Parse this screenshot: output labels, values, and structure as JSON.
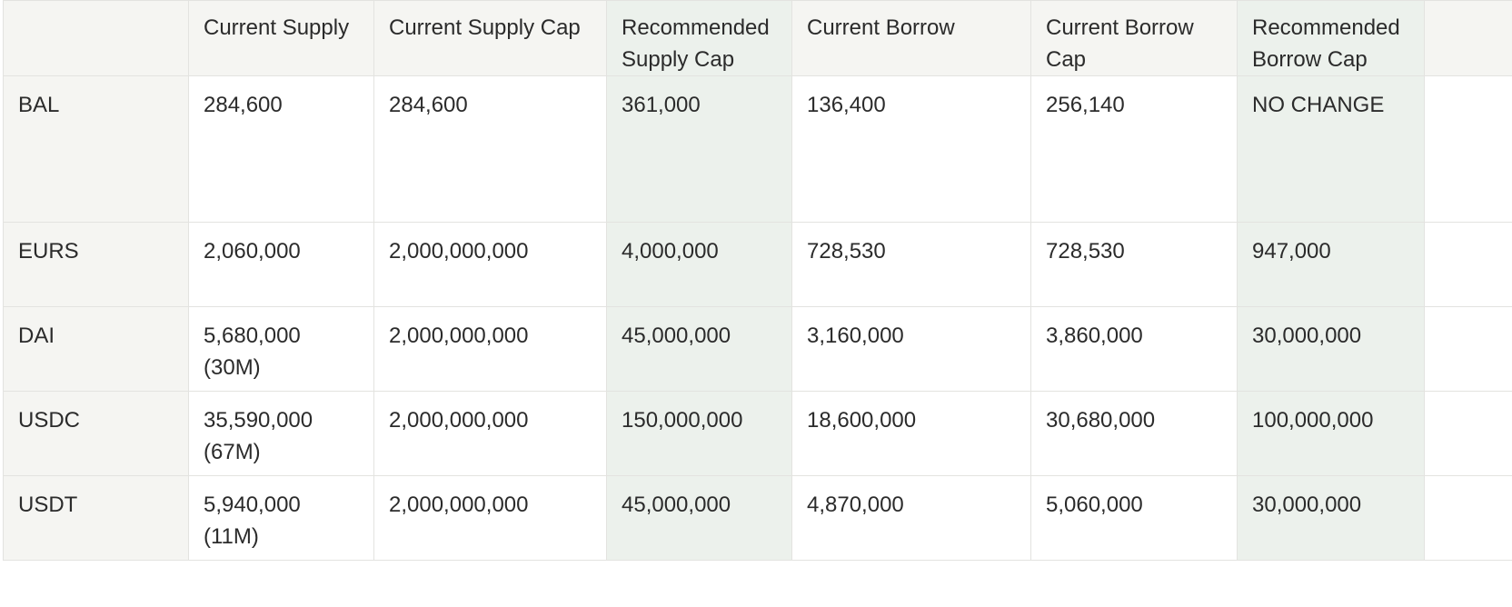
{
  "table": {
    "headers": {
      "corner": "",
      "current_supply": "Current Supply",
      "current_supply_cap": "Current Supply Cap",
      "recommended_supply_cap": "Recommended Supply Cap",
      "current_borrow": "Current Borrow",
      "current_borrow_cap": "Current Borrow Cap",
      "recommended_borrow_cap": "Recommended Borrow Cap"
    },
    "rows": [
      {
        "asset": "BAL",
        "current_supply": "284,600",
        "current_supply_note": "",
        "current_supply_cap": "284,600",
        "recommended_supply_cap": "361,000",
        "current_borrow": "136,400",
        "current_borrow_cap": "256,140",
        "recommended_borrow_cap": "NO CHANGE"
      },
      {
        "asset": "EURS",
        "current_supply": "2,060,000",
        "current_supply_note": "",
        "current_supply_cap": "2,000,000,000",
        "recommended_supply_cap": "4,000,000",
        "current_borrow": "728,530",
        "current_borrow_cap": "728,530",
        "recommended_borrow_cap": "947,000"
      },
      {
        "asset": "DAI",
        "current_supply": "5,680,000",
        "current_supply_note": "(30M)",
        "current_supply_cap": "2,000,000,000",
        "recommended_supply_cap": "45,000,000",
        "current_borrow": "3,160,000",
        "current_borrow_cap": "3,860,000",
        "recommended_borrow_cap": "30,000,000"
      },
      {
        "asset": "USDC",
        "current_supply": "35,590,000",
        "current_supply_note": "(67M)",
        "current_supply_cap": "2,000,000,000",
        "recommended_supply_cap": "150,000,000",
        "current_borrow": "18,600,000",
        "current_borrow_cap": "30,680,000",
        "recommended_borrow_cap": "100,000,000"
      },
      {
        "asset": "USDT",
        "current_supply": "5,940,000",
        "current_supply_note": "(11M)",
        "current_supply_cap": "2,000,000,000",
        "recommended_supply_cap": "45,000,000",
        "current_borrow": "4,870,000",
        "current_borrow_cap": "5,060,000",
        "recommended_borrow_cap": "30,000,000"
      }
    ]
  },
  "colors": {
    "header_bg": "#f5f5f2",
    "recommended_bg": "#ecf1ec",
    "border": "#e3e3e0",
    "text": "#2b2b2b"
  }
}
